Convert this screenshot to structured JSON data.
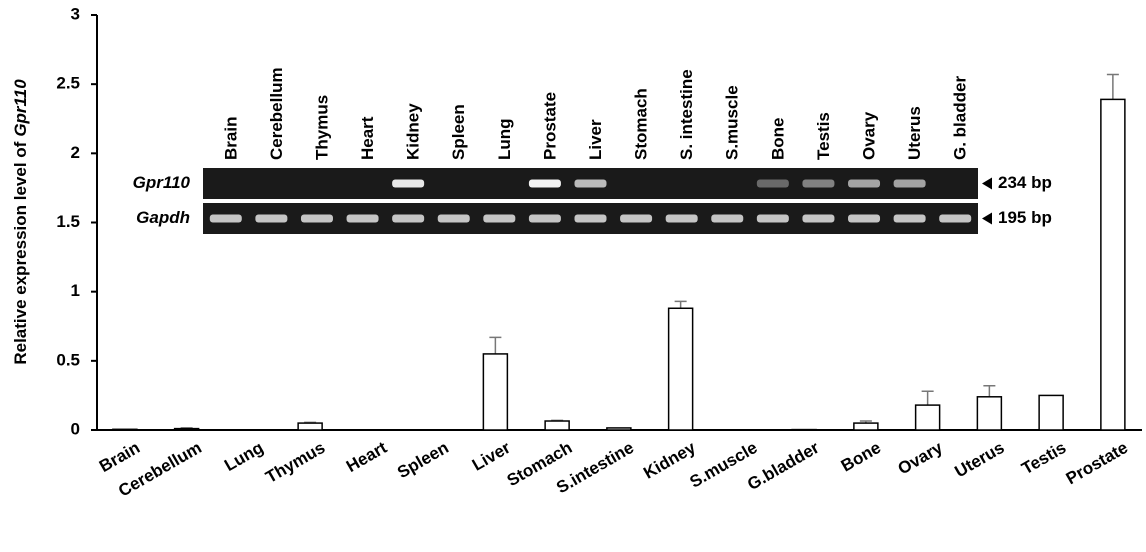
{
  "chart_data": {
    "type": "bar",
    "y_label": "Relative expression level of",
    "y_label_gene": "Gpr110",
    "categories": [
      "Brain",
      "Cerebellum",
      "Lung",
      "Thymus",
      "Heart",
      "Spleen",
      "Liver",
      "Stomach",
      "S.intestine",
      "Kidney",
      "S.muscle",
      "G.bladder",
      "Bone",
      "Ovary",
      "Uterus",
      "Testis",
      "Prostate"
    ],
    "values": [
      0.005,
      0.01,
      0,
      0.05,
      0,
      0,
      0.55,
      0.065,
      0.015,
      0.88,
      0,
      0.003,
      0.05,
      0.18,
      0.24,
      0.25,
      2.39
    ],
    "errors": [
      0,
      0.005,
      0,
      0.005,
      0,
      0,
      0.12,
      0.005,
      0,
      0.05,
      0,
      0,
      0.015,
      0.1,
      0.08,
      0,
      0.18
    ],
    "color": "#ffffff",
    "ylim": [
      0,
      3
    ],
    "yticks": [
      0,
      0.5,
      1,
      1.5,
      2,
      2.5,
      3
    ],
    "grid": false
  },
  "gel": {
    "lanes": [
      "Brain",
      "Cerebellum",
      "Thymus",
      "Heart",
      "Kidney",
      "Spleen",
      "Lung",
      "Prostate",
      "Liver",
      "Stomach",
      "S. intestine",
      "S.muscle",
      "Bone",
      "Testis",
      "Ovary",
      "Uterus",
      "G. bladder"
    ],
    "rows": [
      {
        "label": "Gpr110",
        "size": "234 bp"
      },
      {
        "label": "Gapdh",
        "size": "195 bp"
      }
    ]
  }
}
